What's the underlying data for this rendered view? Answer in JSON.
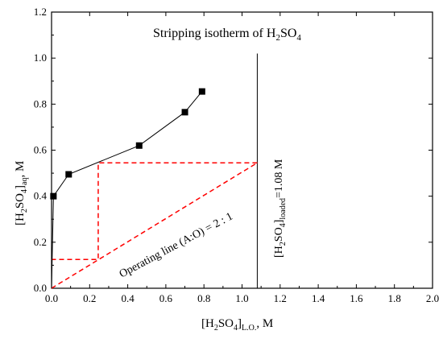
{
  "chart_data": {
    "type": "line",
    "title": {
      "main": "Stripping isotherm of H",
      "sub1": "2",
      "mid": "SO",
      "sub2": "4"
    },
    "xlabel": {
      "pre": "[H",
      "sub1": "2",
      "mid": "SO",
      "sub2": "4",
      "post": "]",
      "sub3": "L.O.",
      "unit": ", M"
    },
    "ylabel": {
      "pre": "[H",
      "sub1": "2",
      "mid": "SO",
      "sub2": "4",
      "post": "]",
      "sub3": "aq",
      "unit": ", M"
    },
    "xlim": [
      0,
      2.0
    ],
    "ylim": [
      0,
      1.2
    ],
    "x_ticks": [
      "0.0",
      "0.2",
      "0.4",
      "0.6",
      "0.8",
      "1.0",
      "1.2",
      "1.4",
      "1.6",
      "1.8",
      "2.0"
    ],
    "y_ticks": [
      "0.0",
      "0.2",
      "0.4",
      "0.6",
      "0.8",
      "1.0",
      "1.2"
    ],
    "grid": false,
    "series": [
      {
        "style": "line-with-square-markers",
        "color": "#000000",
        "points": [
          {
            "x": 0.0,
            "y": 0.0
          },
          {
            "x": 0.01,
            "y": 0.4
          },
          {
            "x": 0.09,
            "y": 0.495
          },
          {
            "x": 0.46,
            "y": 0.62
          },
          {
            "x": 0.7,
            "y": 0.765
          },
          {
            "x": 0.79,
            "y": 0.855
          }
        ]
      }
    ],
    "operating_line": {
      "color": "#ff0000",
      "style": "dashed",
      "from": {
        "x": 0.0,
        "y": 0.0
      },
      "to": {
        "x": 1.08,
        "y": 0.545
      },
      "label": {
        "pre": "Operating line (A:O) = 2 : 1"
      }
    },
    "steps": {
      "color": "#ff0000",
      "style": "dashed",
      "points": [
        {
          "x": 1.08,
          "y": 0.545
        },
        {
          "x": 0.245,
          "y": 0.545
        },
        {
          "x": 0.245,
          "y": 0.125
        },
        {
          "x": 0.0,
          "y": 0.125
        }
      ]
    },
    "loaded_line": {
      "x": 1.08,
      "color": "#000000",
      "label": {
        "pre": "[H",
        "sub1": "2",
        "mid": "SO",
        "sub2": "4",
        "post": "]",
        "sub3": "loaded",
        "tail": "=1.08 M"
      }
    }
  }
}
